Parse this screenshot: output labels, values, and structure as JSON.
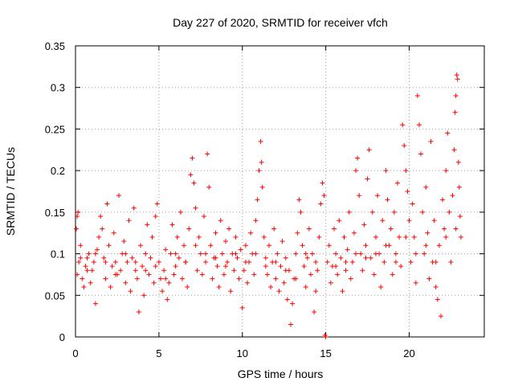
{
  "chart_data": {
    "type": "scatter",
    "title": "Day 227 of 2020, SRMTID for receiver vfch",
    "xlabel": "GPS time / hours",
    "ylabel": "SRMTID / TECUs",
    "xlim": [
      0,
      24.5
    ],
    "ylim": [
      0,
      0.35
    ],
    "xticks": [
      0,
      5,
      10,
      15,
      20
    ],
    "xtick_labels": [
      "0",
      "5",
      "10",
      "15",
      "20"
    ],
    "yticks": [
      0,
      0.05,
      0.1,
      0.15,
      0.2,
      0.25,
      0.3,
      0.35
    ],
    "ytick_labels": [
      "0",
      "0.05",
      "0.1",
      "0.15",
      "0.2",
      "0.25",
      "0.3",
      "0.35"
    ],
    "grid": true,
    "marker": "+",
    "series": [
      {
        "name": "SRMTID",
        "color": "#ff0000",
        "points": [
          [
            0.05,
            0.13
          ],
          [
            0.1,
            0.145
          ],
          [
            0.15,
            0.15
          ],
          [
            0.1,
            0.075
          ],
          [
            0.2,
            0.09
          ],
          [
            0.3,
            0.11
          ],
          [
            0.4,
            0.07
          ],
          [
            0.5,
            0.06
          ],
          [
            0.6,
            0.085
          ],
          [
            0.7,
            0.095
          ],
          [
            0.8,
            0.1
          ],
          [
            0.9,
            0.065
          ],
          [
            1.0,
            0.08
          ],
          [
            1.1,
            0.09
          ],
          [
            1.2,
            0.04
          ],
          [
            1.3,
            0.105
          ],
          [
            1.4,
            0.12
          ],
          [
            1.5,
            0.145
          ],
          [
            1.6,
            0.13
          ],
          [
            1.7,
            0.095
          ],
          [
            1.8,
            0.07
          ],
          [
            1.9,
            0.16
          ],
          [
            2.0,
            0.11
          ],
          [
            2.1,
            0.06
          ],
          [
            2.2,
            0.085
          ],
          [
            2.3,
            0.125
          ],
          [
            2.4,
            0.09
          ],
          [
            2.5,
            0.075
          ],
          [
            2.6,
            0.17
          ],
          [
            2.7,
            0.08
          ],
          [
            2.8,
            0.1
          ],
          [
            2.9,
            0.115
          ],
          [
            3.0,
            0.065
          ],
          [
            3.1,
            0.09
          ],
          [
            3.2,
            0.14
          ],
          [
            3.3,
            0.055
          ],
          [
            3.4,
            0.095
          ],
          [
            3.5,
            0.155
          ],
          [
            3.6,
            0.08
          ],
          [
            3.7,
            0.07
          ],
          [
            3.8,
            0.03
          ],
          [
            3.9,
            0.11
          ],
          [
            4.0,
            0.085
          ],
          [
            4.1,
            0.05
          ],
          [
            4.2,
            0.1
          ],
          [
            4.3,
            0.135
          ],
          [
            4.4,
            0.075
          ],
          [
            4.5,
            0.095
          ],
          [
            4.6,
            0.12
          ],
          [
            4.7,
            0.065
          ],
          [
            4.8,
            0.145
          ],
          [
            4.9,
            0.16
          ],
          [
            5.0,
            0.09
          ],
          [
            5.1,
            0.07
          ],
          [
            5.2,
            0.055
          ],
          [
            5.3,
            0.08
          ],
          [
            5.4,
            0.105
          ],
          [
            5.5,
            0.045
          ],
          [
            5.6,
            0.065
          ],
          [
            5.7,
            0.1
          ],
          [
            5.8,
            0.135
          ],
          [
            5.9,
            0.075
          ],
          [
            6.0,
            0.085
          ],
          [
            6.1,
            0.12
          ],
          [
            6.2,
            0.095
          ],
          [
            6.3,
            0.15
          ],
          [
            6.4,
            0.07
          ],
          [
            6.5,
            0.11
          ],
          [
            6.6,
            0.09
          ],
          [
            6.7,
            0.06
          ],
          [
            6.8,
            0.13
          ],
          [
            6.9,
            0.195
          ],
          [
            7.0,
            0.215
          ],
          [
            7.1,
            0.185
          ],
          [
            7.2,
            0.155
          ],
          [
            7.3,
            0.08
          ],
          [
            7.4,
            0.12
          ],
          [
            7.5,
            0.1
          ],
          [
            7.6,
            0.075
          ],
          [
            7.7,
            0.145
          ],
          [
            7.8,
            0.09
          ],
          [
            7.9,
            0.22
          ],
          [
            8.0,
            0.18
          ],
          [
            8.1,
            0.11
          ],
          [
            8.2,
            0.07
          ],
          [
            8.3,
            0.095
          ],
          [
            8.4,
            0.125
          ],
          [
            8.5,
            0.085
          ],
          [
            8.6,
            0.06
          ],
          [
            8.7,
            0.14
          ],
          [
            8.8,
            0.1
          ],
          [
            8.9,
            0.075
          ],
          [
            9.0,
            0.115
          ],
          [
            9.1,
            0.09
          ],
          [
            9.2,
            0.13
          ],
          [
            9.3,
            0.055
          ],
          [
            9.4,
            0.1
          ],
          [
            9.5,
            0.08
          ],
          [
            9.6,
            0.12
          ],
          [
            9.7,
            0.095
          ],
          [
            9.8,
            0.07
          ],
          [
            9.9,
            0.105
          ],
          [
            10.0,
            0.035
          ],
          [
            10.1,
            0.08
          ],
          [
            10.2,
            0.11
          ],
          [
            10.3,
            0.065
          ],
          [
            10.4,
            0.09
          ],
          [
            10.5,
            0.125
          ],
          [
            10.6,
            0.1
          ],
          [
            10.7,
            0.075
          ],
          [
            10.8,
            0.14
          ],
          [
            10.9,
            0.165
          ],
          [
            11.0,
            0.2
          ],
          [
            11.1,
            0.235
          ],
          [
            11.15,
            0.21
          ],
          [
            11.2,
            0.18
          ],
          [
            11.3,
            0.12
          ],
          [
            11.4,
            0.095
          ],
          [
            11.5,
            0.075
          ],
          [
            11.6,
            0.11
          ],
          [
            11.7,
            0.06
          ],
          [
            11.8,
            0.09
          ],
          [
            11.9,
            0.13
          ],
          [
            12.0,
            0.07
          ],
          [
            12.1,
            0.1
          ],
          [
            12.2,
            0.055
          ],
          [
            12.3,
            0.085
          ],
          [
            12.4,
            0.115
          ],
          [
            12.5,
            0.065
          ],
          [
            12.6,
            0.095
          ],
          [
            12.7,
            0.045
          ],
          [
            12.8,
            0.08
          ],
          [
            12.9,
            0.015
          ],
          [
            13.0,
            0.04
          ],
          [
            13.1,
            0.07
          ],
          [
            13.2,
            0.1
          ],
          [
            13.3,
            0.125
          ],
          [
            13.4,
            0.165
          ],
          [
            13.5,
            0.15
          ],
          [
            13.6,
            0.11
          ],
          [
            13.7,
            0.085
          ],
          [
            13.8,
            0.06
          ],
          [
            13.9,
            0.095
          ],
          [
            14.0,
            0.13
          ],
          [
            14.1,
            0.075
          ],
          [
            14.2,
            0.1
          ],
          [
            14.3,
            0.03
          ],
          [
            14.4,
            0.055
          ],
          [
            14.5,
            0.08
          ],
          [
            14.6,
            0.12
          ],
          [
            14.7,
            0.16
          ],
          [
            14.8,
            0.185
          ],
          [
            14.9,
            0.17
          ],
          [
            14.95,
            0.002
          ],
          [
            15.0,
            0.0
          ],
          [
            15.1,
            0.09
          ],
          [
            15.2,
            0.11
          ],
          [
            15.3,
            0.065
          ],
          [
            15.4,
            0.085
          ],
          [
            15.5,
            0.13
          ],
          [
            15.6,
            0.1
          ],
          [
            15.7,
            0.075
          ],
          [
            15.8,
            0.14
          ],
          [
            15.9,
            0.095
          ],
          [
            16.0,
            0.055
          ],
          [
            16.1,
            0.12
          ],
          [
            16.2,
            0.08
          ],
          [
            16.3,
            0.105
          ],
          [
            16.4,
            0.15
          ],
          [
            16.5,
            0.07
          ],
          [
            16.6,
            0.09
          ],
          [
            16.7,
            0.125
          ],
          [
            16.8,
            0.2
          ],
          [
            16.9,
            0.215
          ],
          [
            17.0,
            0.17
          ],
          [
            17.1,
            0.1
          ],
          [
            17.2,
            0.08
          ],
          [
            17.3,
            0.135
          ],
          [
            17.4,
            0.11
          ],
          [
            17.5,
            0.19
          ],
          [
            17.6,
            0.225
          ],
          [
            17.7,
            0.095
          ],
          [
            17.8,
            0.15
          ],
          [
            17.9,
            0.075
          ],
          [
            18.0,
            0.12
          ],
          [
            18.1,
            0.17
          ],
          [
            18.2,
            0.1
          ],
          [
            18.3,
            0.06
          ],
          [
            18.4,
            0.14
          ],
          [
            18.5,
            0.09
          ],
          [
            18.6,
            0.2
          ],
          [
            18.7,
            0.165
          ],
          [
            18.8,
            0.11
          ],
          [
            18.9,
            0.13
          ],
          [
            19.0,
            0.075
          ],
          [
            19.1,
            0.15
          ],
          [
            19.2,
            0.1
          ],
          [
            19.3,
            0.185
          ],
          [
            19.4,
            0.12
          ],
          [
            19.5,
            0.085
          ],
          [
            19.6,
            0.255
          ],
          [
            19.7,
            0.23
          ],
          [
            19.8,
            0.2
          ],
          [
            19.9,
            0.175
          ],
          [
            20.0,
            0.14
          ],
          [
            20.1,
            0.09
          ],
          [
            20.2,
            0.16
          ],
          [
            20.3,
            0.12
          ],
          [
            20.4,
            0.065
          ],
          [
            20.5,
            0.29
          ],
          [
            20.6,
            0.255
          ],
          [
            20.7,
            0.22
          ],
          [
            20.8,
            0.15
          ],
          [
            20.9,
            0.1
          ],
          [
            21.0,
            0.18
          ],
          [
            21.1,
            0.125
          ],
          [
            21.2,
            0.07
          ],
          [
            21.3,
            0.235
          ],
          [
            21.4,
            0.09
          ],
          [
            21.5,
            0.14
          ],
          [
            21.6,
            0.06
          ],
          [
            21.7,
            0.045
          ],
          [
            21.8,
            0.11
          ],
          [
            21.9,
            0.025
          ],
          [
            22.0,
            0.165
          ],
          [
            22.1,
            0.13
          ],
          [
            22.2,
            0.2
          ],
          [
            22.3,
            0.245
          ],
          [
            22.4,
            0.15
          ],
          [
            22.5,
            0.09
          ],
          [
            22.6,
            0.17
          ],
          [
            22.7,
            0.225
          ],
          [
            22.75,
            0.27
          ],
          [
            22.8,
            0.29
          ],
          [
            22.85,
            0.315
          ],
          [
            22.9,
            0.31
          ],
          [
            22.95,
            0.21
          ],
          [
            23.0,
            0.18
          ],
          [
            23.05,
            0.145
          ],
          [
            23.1,
            0.12
          ],
          [
            0.3,
            0.095
          ],
          [
            0.7,
            0.08
          ],
          [
            1.2,
            0.1
          ],
          [
            1.8,
            0.09
          ],
          [
            2.4,
            0.075
          ],
          [
            3.0,
            0.1
          ],
          [
            3.6,
            0.09
          ],
          [
            4.2,
            0.08
          ],
          [
            4.8,
            0.085
          ],
          [
            5.4,
            0.07
          ],
          [
            6.0,
            0.1
          ],
          [
            6.6,
            0.09
          ],
          [
            7.2,
            0.11
          ],
          [
            7.8,
            0.1
          ],
          [
            8.4,
            0.095
          ],
          [
            9.0,
            0.085
          ],
          [
            9.6,
            0.1
          ],
          [
            10.2,
            0.09
          ],
          [
            10.8,
            0.1
          ],
          [
            11.4,
            0.085
          ],
          [
            12.0,
            0.09
          ],
          [
            12.6,
            0.08
          ],
          [
            13.2,
            0.07
          ],
          [
            13.8,
            0.1
          ],
          [
            14.4,
            0.09
          ],
          [
            15.6,
            0.085
          ],
          [
            16.2,
            0.09
          ],
          [
            16.8,
            0.1
          ],
          [
            17.4,
            0.095
          ],
          [
            18.0,
            0.1
          ],
          [
            18.6,
            0.11
          ],
          [
            19.2,
            0.09
          ],
          [
            19.8,
            0.12
          ],
          [
            20.4,
            0.1
          ],
          [
            21.0,
            0.11
          ],
          [
            21.6,
            0.09
          ],
          [
            22.2,
            0.12
          ],
          [
            22.8,
            0.13
          ]
        ]
      }
    ]
  }
}
